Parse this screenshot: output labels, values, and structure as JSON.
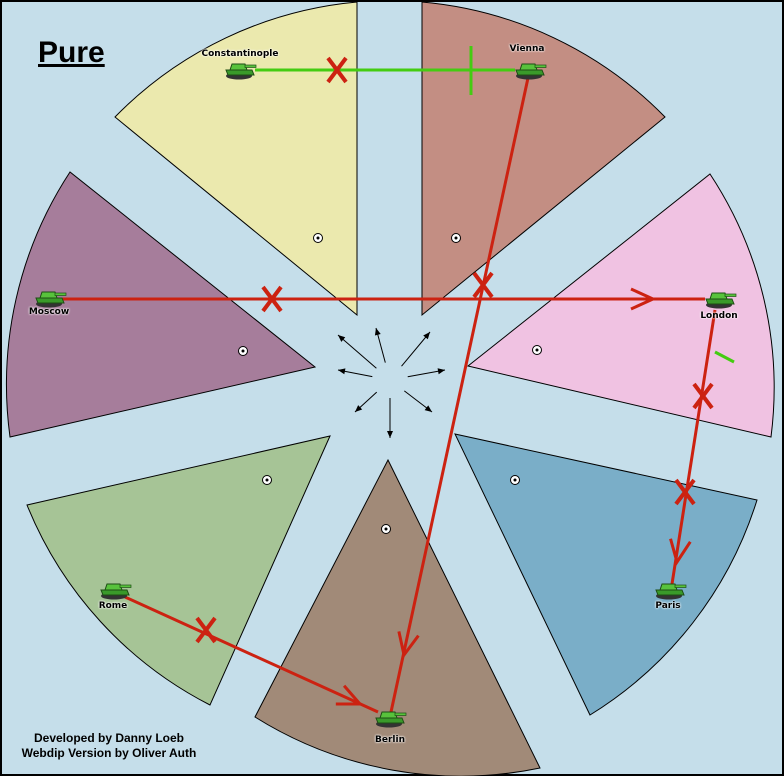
{
  "title": "Pure",
  "credits": [
    "Developed by Danny Loeb",
    "Webdip Version by Oliver Auth"
  ],
  "colors": {
    "background": "#c5deea",
    "support": "#44cc11",
    "move": "#cc2211",
    "unit": "#3a9a2a"
  },
  "provinces": [
    {
      "name": "Constantinople",
      "color": "#ebe9ae"
    },
    {
      "name": "Vienna",
      "color": "#c38e83"
    },
    {
      "name": "London",
      "color": "#f0c2e2"
    },
    {
      "name": "Paris",
      "color": "#7aaec8"
    },
    {
      "name": "Berlin",
      "color": "#a18a78"
    },
    {
      "name": "Rome",
      "color": "#a6c496"
    },
    {
      "name": "Moscow",
      "color": "#a67d9b"
    }
  ],
  "units": [
    {
      "type": "army-tank-icon",
      "province": "Constantinople"
    },
    {
      "type": "army-tank-icon",
      "province": "Vienna"
    },
    {
      "type": "army-tank-icon",
      "province": "London"
    },
    {
      "type": "army-tank-icon",
      "province": "Paris"
    },
    {
      "type": "army-tank-icon",
      "province": "Berlin"
    },
    {
      "type": "army-tank-icon",
      "province": "Rome"
    },
    {
      "type": "army-tank-icon",
      "province": "Moscow"
    }
  ],
  "orders": [
    {
      "type": "support",
      "from": "Constantinople",
      "to": "Vienna",
      "failed": true
    },
    {
      "type": "move",
      "from": "Vienna",
      "to": "Berlin",
      "failed": true
    },
    {
      "type": "move",
      "from": "Moscow",
      "to": "London",
      "failed": true
    },
    {
      "type": "move",
      "from": "London",
      "to": "Paris",
      "failed": true
    },
    {
      "type": "move",
      "from": "Rome",
      "to": "Berlin",
      "failed": true
    }
  ]
}
